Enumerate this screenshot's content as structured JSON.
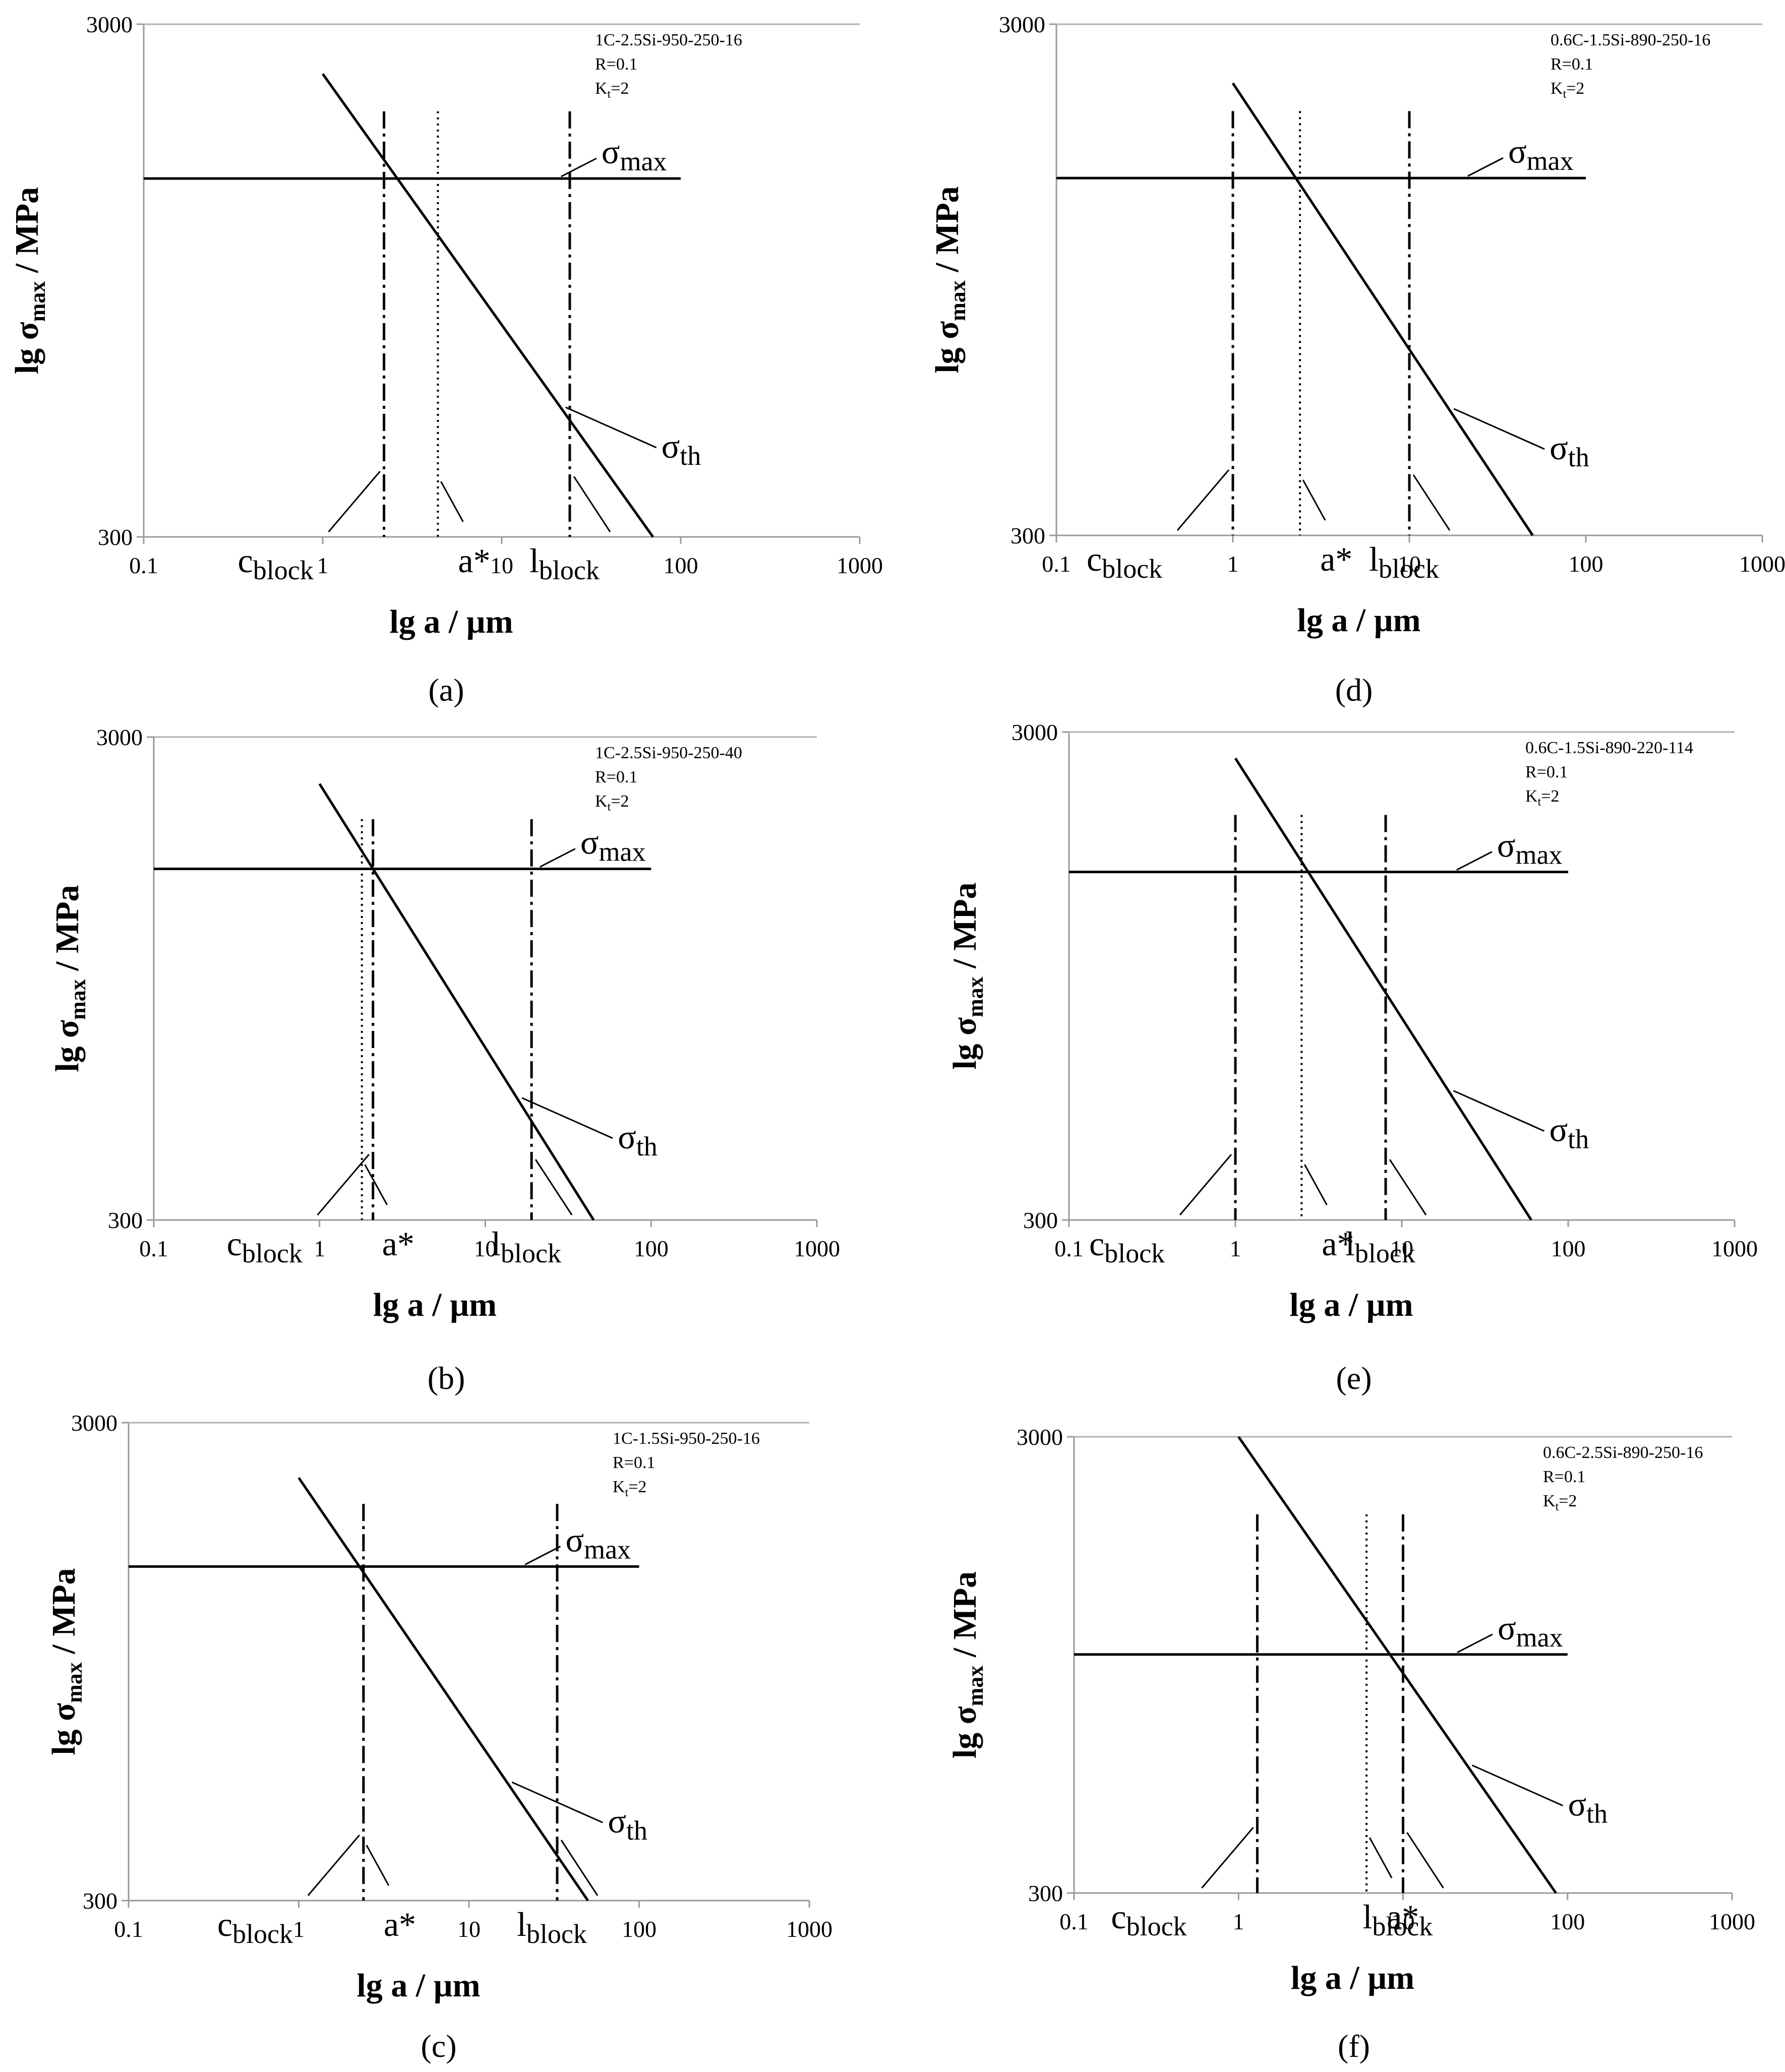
{
  "chart_data": [
    {
      "type": "line",
      "panel_label": "(a)",
      "info_lines": [
        "1C-2.5Si-950-250-16",
        "R=0.1",
        "Kt=2"
      ],
      "xlabel": "lg a / µm",
      "ylabel": "lg σmax / MPa",
      "xscale": "log",
      "yscale": "log",
      "xlim": [
        0.1,
        1000
      ],
      "ylim": [
        300,
        3000
      ],
      "x_ticks": [
        "0.1",
        "1",
        "10",
        "100",
        "1000"
      ],
      "y_ticks": [
        "300",
        "3000"
      ],
      "series": [
        {
          "name": "σmax",
          "x": [
            0.1,
            100
          ],
          "y": [
            1500,
            1500
          ]
        },
        {
          "name": "σth",
          "x": [
            1,
            70
          ],
          "y": [
            2400,
            300
          ]
        }
      ],
      "vlines": [
        {
          "name": "cblock",
          "x": 2.2,
          "style": "dashdot"
        },
        {
          "name": "a*",
          "x": 4.4,
          "style": "dotted"
        },
        {
          "name": "lblock",
          "x": 24,
          "style": "dashdot"
        }
      ],
      "labels": {
        "cblock": "c",
        "a_star": "a*",
        "lblock": "l",
        "sigma_max": "σ",
        "sigma_th": "σ"
      }
    },
    {
      "type": "line",
      "panel_label": "(b)",
      "info_lines": [
        "1C-2.5Si-950-250-40",
        "R=0.1",
        "Kt=2"
      ],
      "xlabel": "lg a / µm",
      "ylabel": "lg σmax / MPa",
      "xscale": "log",
      "yscale": "log",
      "xlim": [
        0.1,
        1000
      ],
      "ylim": [
        300,
        3000
      ],
      "x_ticks": [
        "0.1",
        "1",
        "10",
        "100",
        "1000"
      ],
      "y_ticks": [
        "300",
        "3000"
      ],
      "series": [
        {
          "name": "σmax",
          "x": [
            0.1,
            100
          ],
          "y": [
            1600,
            1600
          ]
        },
        {
          "name": "σth",
          "x": [
            1,
            45
          ],
          "y": [
            2400,
            300
          ]
        }
      ],
      "vlines": [
        {
          "name": "a*",
          "x": 1.8,
          "style": "dotted"
        },
        {
          "name": "cblock",
          "x": 2.1,
          "style": "dashdot"
        },
        {
          "name": "lblock",
          "x": 19,
          "style": "dashdot"
        }
      ],
      "labels": {
        "cblock": "c",
        "a_star": "a*",
        "lblock": "l",
        "sigma_max": "σ",
        "sigma_th": "σ"
      }
    },
    {
      "type": "line",
      "panel_label": "(c)",
      "info_lines": [
        "1C-1.5Si-950-250-16",
        "R=0.1",
        "Kt=2"
      ],
      "xlabel": "lg a / µm",
      "ylabel": "lg σmax / MPa",
      "xscale": "log",
      "yscale": "log",
      "xlim": [
        0.1,
        1000
      ],
      "ylim": [
        300,
        3000
      ],
      "x_ticks": [
        "0.1",
        "1",
        "10",
        "100",
        "1000"
      ],
      "y_ticks": [
        "300",
        "3000"
      ],
      "series": [
        {
          "name": "σmax",
          "x": [
            0.1,
            100
          ],
          "y": [
            1500,
            1500
          ]
        },
        {
          "name": "σth",
          "x": [
            1,
            50
          ],
          "y": [
            2300,
            300
          ]
        }
      ],
      "vlines": [
        {
          "name": "cblock",
          "x": 2.4,
          "style": "dashdot"
        },
        {
          "name": "lblock",
          "x": 33,
          "style": "dashdot"
        }
      ],
      "labels": {
        "cblock": "c",
        "a_star": "a*",
        "lblock": "l",
        "sigma_max": "σ",
        "sigma_th": "σ"
      }
    },
    {
      "type": "line",
      "panel_label": "(d)",
      "info_lines": [
        "0.6C-1.5Si-890-250-16",
        "R=0.1",
        "Kt=2"
      ],
      "xlabel": "lg a / µm",
      "ylabel": "lg σmax / MPa",
      "xscale": "log",
      "yscale": "log",
      "xlim": [
        0.1,
        1000
      ],
      "ylim": [
        300,
        3000
      ],
      "x_ticks": [
        "0.1",
        "1",
        "10",
        "100",
        "1000"
      ],
      "y_ticks": [
        "300",
        "3000"
      ],
      "series": [
        {
          "name": "σmax",
          "x": [
            0.1,
            100
          ],
          "y": [
            1500,
            1500
          ]
        },
        {
          "name": "σth",
          "x": [
            1,
            50
          ],
          "y": [
            2300,
            300
          ]
        }
      ],
      "vlines": [
        {
          "name": "cblock",
          "x": 1.0,
          "style": "dashdot"
        },
        {
          "name": "a*",
          "x": 2.4,
          "style": "dotted"
        },
        {
          "name": "lblock",
          "x": 10,
          "style": "dashdot"
        }
      ],
      "labels": {
        "cblock": "c",
        "a_star": "a*",
        "lblock": "l",
        "sigma_max": "σ",
        "sigma_th": "σ"
      }
    },
    {
      "type": "line",
      "panel_label": "(e)",
      "info_lines": [
        "0.6C-1.5Si-890-220-114",
        "R=0.1",
        "Kt=2"
      ],
      "xlabel": "lg a / µm",
      "ylabel": "lg σmax / MPa",
      "xscale": "log",
      "yscale": "log",
      "xlim": [
        0.1,
        1000
      ],
      "ylim": [
        300,
        3000
      ],
      "x_ticks": [
        "0.1",
        "1",
        "10",
        "100",
        "1000"
      ],
      "y_ticks": [
        "300",
        "3000"
      ],
      "series": [
        {
          "name": "σmax",
          "x": [
            0.1,
            100
          ],
          "y": [
            1550,
            1550
          ]
        },
        {
          "name": "σth",
          "x": [
            1,
            60
          ],
          "y": [
            2650,
            300
          ]
        }
      ],
      "vlines": [
        {
          "name": "cblock",
          "x": 1.0,
          "style": "dashdot"
        },
        {
          "name": "a*",
          "x": 2.5,
          "style": "dotted"
        },
        {
          "name": "lblock",
          "x": 8,
          "style": "dashdot"
        }
      ],
      "labels": {
        "cblock": "c",
        "a_star": "a*",
        "lblock": "l",
        "sigma_max": "σ",
        "sigma_th": "σ"
      }
    },
    {
      "type": "line",
      "panel_label": "(f)",
      "info_lines": [
        "0.6C-2.5Si-890-250-16",
        "R=0.1",
        "Kt=2"
      ],
      "xlabel": "lg a / µm",
      "ylabel": "lg σmax / MPa",
      "xscale": "log",
      "yscale": "log",
      "xlim": [
        0.1,
        1000
      ],
      "ylim": [
        300,
        3000
      ],
      "x_ticks": [
        "0.1",
        "1",
        "10",
        "100",
        "1000"
      ],
      "y_ticks": [
        "300",
        "3000"
      ],
      "series": [
        {
          "name": "σmax",
          "x": [
            0.1,
            100
          ],
          "y": [
            1000,
            1000
          ]
        },
        {
          "name": "σth",
          "x": [
            1,
            85
          ],
          "y": [
            3000,
            300
          ]
        }
      ],
      "vlines": [
        {
          "name": "cblock",
          "x": 1.3,
          "style": "dashdot"
        },
        {
          "name": "a*",
          "x": 6,
          "style": "dotted"
        },
        {
          "name": "lblock",
          "x": 10,
          "style": "dashdot"
        }
      ],
      "labels": {
        "cblock": "c",
        "a_star": "a*",
        "lblock": "l",
        "sigma_max": "σ",
        "sigma_th": "σ"
      }
    }
  ],
  "subscripts": {
    "block": "block",
    "max": "max",
    "th": "th",
    "t": "t"
  }
}
